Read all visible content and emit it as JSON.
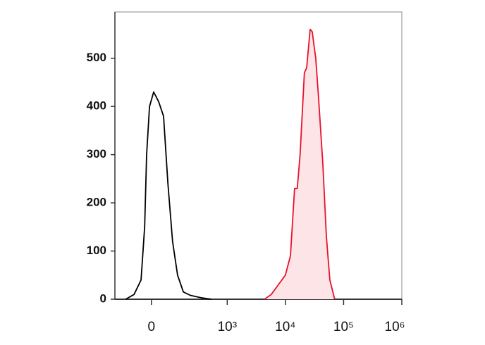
{
  "chart_data": {
    "type": "line",
    "xscale": "asinh",
    "xscale_cofactor": 100,
    "xlim": [
      -200,
      1000000
    ],
    "xticks": [
      0,
      {
        "value": 1000,
        "label": "10³"
      },
      {
        "value": 10000,
        "label": "10⁴"
      },
      {
        "value": 100000,
        "label": "10⁵"
      },
      {
        "value": 1000000,
        "label": "10⁶"
      }
    ],
    "ylim": [
      0,
      596
    ],
    "yticks": [
      0,
      100,
      200,
      300,
      400,
      500
    ],
    "series": [
      {
        "color": "#000000",
        "fill": null,
        "x": [
          -120,
          -74,
          -42,
          -27,
          -19,
          -7.5,
          9,
          29,
          50,
          70,
          94,
          123,
          163,
          223,
          350,
          535
        ],
        "values": [
          0,
          10,
          40,
          150,
          300,
          400,
          430,
          410,
          380,
          240,
          120,
          50,
          15,
          8,
          3,
          0
        ]
      },
      {
        "color": "#e8112d",
        "fill": "#fde4e6",
        "x": [
          4370,
          5720,
          7570,
          10000,
          12200,
          14400,
          16000,
          17900,
          21200,
          23200,
          26700,
          28900,
          33200,
          37100,
          44000,
          50600,
          58100,
          70300
        ],
        "values": [
          0,
          10,
          30,
          50,
          90,
          230,
          230,
          300,
          470,
          480,
          560,
          555,
          500,
          420,
          280,
          130,
          40,
          0
        ]
      }
    ]
  }
}
